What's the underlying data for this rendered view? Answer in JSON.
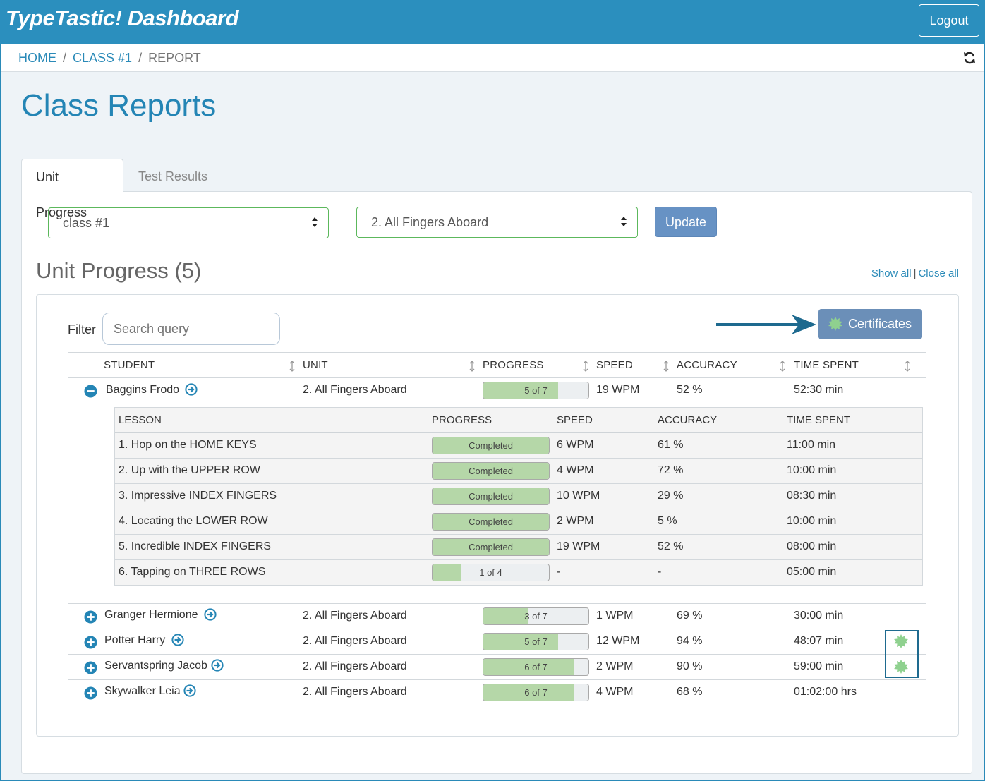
{
  "app": {
    "title": "TypeTastic! Dashboard",
    "logout_label": "Logout"
  },
  "breadcrumb": {
    "home": "HOME",
    "class": "CLASS #1",
    "current": "REPORT",
    "separator": "/"
  },
  "page_title": "Class Reports",
  "tabs": {
    "unit_progress": "Unit Progress",
    "test_results": "Test Results"
  },
  "filters": {
    "class_select": "class #1",
    "unit_select": "2. All Fingers Aboard",
    "update_label": "Update"
  },
  "section": {
    "title": "Unit Progress (5)",
    "show_all": "Show all",
    "close_all": "Close all",
    "divider": "|",
    "filter_label": "Filter",
    "search_placeholder": "Search query",
    "certificates_label": "Certificates"
  },
  "columns": {
    "student": "STUDENT",
    "unit": "UNIT",
    "progress": "PROGRESS",
    "speed": "SPEED",
    "accuracy": "ACCURACY",
    "time_spent": "TIME SPENT"
  },
  "students": [
    {
      "name": "Baggins Frodo",
      "unit": "2. All Fingers Aboard",
      "progress_label": "5 of 7",
      "progress": 0.71,
      "speed": "19 WPM",
      "accuracy": "52 %",
      "time": "52:30 min",
      "expanded": true,
      "certificate": false
    },
    {
      "name": "Granger Hermione",
      "unit": "2. All Fingers Aboard",
      "progress_label": "3 of 7",
      "progress": 0.43,
      "speed": "1 WPM",
      "accuracy": "69 %",
      "time": "30:00 min",
      "expanded": false,
      "certificate": false
    },
    {
      "name": "Potter Harry",
      "unit": "2. All Fingers Aboard",
      "progress_label": "5 of 7",
      "progress": 0.71,
      "speed": "12 WPM",
      "accuracy": "94 %",
      "time": "48:07 min",
      "expanded": false,
      "certificate": true
    },
    {
      "name": "Servantspring Jacob",
      "unit": "2. All Fingers Aboard",
      "progress_label": "6 of 7",
      "progress": 0.86,
      "speed": "2 WPM",
      "accuracy": "90 %",
      "time": "59:00 min",
      "expanded": false,
      "certificate": true
    },
    {
      "name": "Skywalker Leia",
      "unit": "2. All Fingers Aboard",
      "progress_label": "6 of 7",
      "progress": 0.86,
      "speed": "4 WPM",
      "accuracy": "68 %",
      "time": "01:02:00 hrs",
      "expanded": false,
      "certificate": false
    }
  ],
  "lesson_columns": {
    "lesson": "LESSON",
    "progress": "PROGRESS",
    "speed": "SPEED",
    "accuracy": "ACCURACY",
    "time_spent": "TIME SPENT"
  },
  "lessons": [
    {
      "name": "1. Hop on the HOME KEYS",
      "progress_label": "Completed",
      "progress": 1.0,
      "speed": "6 WPM",
      "accuracy": "61 %",
      "time": "11:00 min"
    },
    {
      "name": "2. Up with the UPPER ROW",
      "progress_label": "Completed",
      "progress": 1.0,
      "speed": "4 WPM",
      "accuracy": "72 %",
      "time": "10:00 min"
    },
    {
      "name": "3. Impressive INDEX FINGERS",
      "progress_label": "Completed",
      "progress": 1.0,
      "speed": "10 WPM",
      "accuracy": "29 %",
      "time": "08:30 min"
    },
    {
      "name": "4. Locating the LOWER ROW",
      "progress_label": "Completed",
      "progress": 1.0,
      "speed": "2 WPM",
      "accuracy": "5 %",
      "time": "10:00 min"
    },
    {
      "name": "5. Incredible INDEX FINGERS",
      "progress_label": "Completed",
      "progress": 1.0,
      "speed": "19 WPM",
      "accuracy": "52 %",
      "time": "08:00 min"
    },
    {
      "name": "6. Tapping on THREE ROWS",
      "progress_label": "1 of 4",
      "progress": 0.25,
      "speed": "-",
      "accuracy": "-",
      "time": "05:00 min"
    }
  ],
  "colors": {
    "header": "#2b8fbe",
    "title_blue": "#2485b5",
    "progress_fill": "#b5d7a8",
    "certificate_green": "#8fd18f",
    "button_blue": "#6792c4"
  },
  "icons": {
    "refresh": "refresh-icon",
    "expand": "plus-circle-icon",
    "collapse": "minus-circle-icon",
    "go": "arrow-circle-right-icon",
    "certificate": "certificate-seal-icon",
    "sort": "sort-arrows-icon"
  }
}
